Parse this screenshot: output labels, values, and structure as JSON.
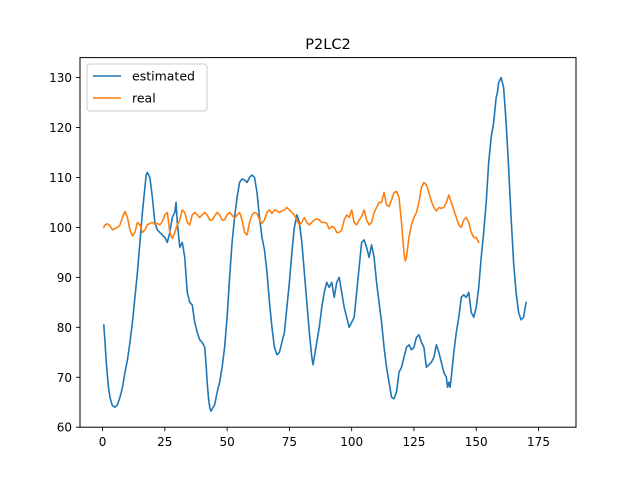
{
  "chart_data": {
    "type": "line",
    "title": "P2LC2",
    "xlabel": "",
    "ylabel": "",
    "xlim": [
      -9.05,
      190.05
    ],
    "ylim": [
      60,
      134
    ],
    "xticks": [
      0,
      25,
      50,
      75,
      100,
      125,
      150,
      175
    ],
    "yticks": [
      60,
      70,
      80,
      90,
      100,
      110,
      120,
      130
    ],
    "grid": false,
    "legend_position": "upper left",
    "series": [
      {
        "name": "estimated",
        "color": "#1f77b4",
        "points": [
          [
            0.5,
            80.5
          ],
          [
            1,
            77
          ],
          [
            1.5,
            73
          ],
          [
            2,
            70
          ],
          [
            2.5,
            67.5
          ],
          [
            3,
            66
          ],
          [
            3.5,
            65
          ],
          [
            4,
            64.3
          ],
          [
            5,
            64
          ],
          [
            6,
            64.5
          ],
          [
            7,
            66
          ],
          [
            8,
            68
          ],
          [
            9,
            71
          ],
          [
            10,
            73.5
          ],
          [
            11,
            77
          ],
          [
            12,
            81
          ],
          [
            13,
            86
          ],
          [
            14,
            91
          ],
          [
            15,
            97
          ],
          [
            16,
            103
          ],
          [
            17,
            108
          ],
          [
            17.5,
            110.5
          ],
          [
            18,
            111
          ],
          [
            19,
            110
          ],
          [
            20,
            106
          ],
          [
            21,
            101
          ],
          [
            22,
            99.5
          ],
          [
            23,
            99
          ],
          [
            24,
            98.5
          ],
          [
            25,
            98
          ],
          [
            26,
            97
          ],
          [
            27,
            99
          ],
          [
            28,
            102
          ],
          [
            29,
            103
          ],
          [
            29.5,
            105
          ],
          [
            30,
            101
          ],
          [
            31,
            96
          ],
          [
            32,
            97
          ],
          [
            33,
            94
          ],
          [
            34,
            87
          ],
          [
            35,
            85
          ],
          [
            36,
            84.5
          ],
          [
            37,
            81
          ],
          [
            38,
            79
          ],
          [
            39,
            77.5
          ],
          [
            40,
            77
          ],
          [
            41,
            76
          ],
          [
            41.5,
            73
          ],
          [
            42,
            69
          ],
          [
            42.5,
            66
          ],
          [
            43,
            64
          ],
          [
            43.5,
            63.2
          ],
          [
            45,
            64.5
          ],
          [
            46,
            67
          ],
          [
            47,
            69
          ],
          [
            48,
            72
          ],
          [
            49,
            76
          ],
          [
            50,
            82
          ],
          [
            51,
            90
          ],
          [
            52,
            97
          ],
          [
            53,
            102
          ],
          [
            54,
            106
          ],
          [
            55,
            109
          ],
          [
            56,
            109.7
          ],
          [
            57,
            109.5
          ],
          [
            58,
            109
          ],
          [
            59,
            110
          ],
          [
            60,
            110.5
          ],
          [
            61,
            110
          ],
          [
            62,
            107
          ],
          [
            63,
            102
          ],
          [
            64,
            98
          ],
          [
            65,
            95.5
          ],
          [
            66,
            91
          ],
          [
            67,
            85
          ],
          [
            68,
            80
          ],
          [
            69,
            76
          ],
          [
            70,
            74.5
          ],
          [
            71,
            75
          ],
          [
            72,
            77
          ],
          [
            73,
            79
          ],
          [
            74,
            84
          ],
          [
            75,
            89
          ],
          [
            76,
            95
          ],
          [
            77,
            100
          ],
          [
            78,
            102.5
          ],
          [
            79,
            101
          ],
          [
            80,
            97
          ],
          [
            81,
            91
          ],
          [
            82,
            85
          ],
          [
            83,
            79
          ],
          [
            84,
            74
          ],
          [
            84.5,
            72.5
          ],
          [
            85,
            74
          ],
          [
            86,
            77
          ],
          [
            87,
            80
          ],
          [
            88,
            84
          ],
          [
            89,
            87
          ],
          [
            90,
            89
          ],
          [
            91,
            88
          ],
          [
            92,
            89
          ],
          [
            93,
            86
          ],
          [
            94,
            89
          ],
          [
            95,
            90
          ],
          [
            96,
            87
          ],
          [
            97,
            84
          ],
          [
            98,
            82
          ],
          [
            99,
            80
          ],
          [
            100,
            81
          ],
          [
            101,
            82
          ],
          [
            102,
            87
          ],
          [
            103,
            92
          ],
          [
            104,
            97
          ],
          [
            105,
            97.5
          ],
          [
            106,
            96
          ],
          [
            107,
            94
          ],
          [
            108,
            96.5
          ],
          [
            109,
            94
          ],
          [
            110,
            89
          ],
          [
            111,
            85
          ],
          [
            112,
            81
          ],
          [
            113,
            76
          ],
          [
            114,
            72
          ],
          [
            115,
            69
          ],
          [
            116,
            66
          ],
          [
            117,
            65.7
          ],
          [
            118,
            67
          ],
          [
            119,
            71
          ],
          [
            120,
            72
          ],
          [
            121,
            74
          ],
          [
            122,
            76
          ],
          [
            123,
            76.5
          ],
          [
            124,
            75.5
          ],
          [
            125,
            76
          ],
          [
            126,
            78
          ],
          [
            127,
            78.5
          ],
          [
            128,
            77
          ],
          [
            129,
            76
          ],
          [
            130,
            72
          ],
          [
            131,
            72.5
          ],
          [
            132,
            73
          ],
          [
            133,
            74
          ],
          [
            134,
            76.5
          ],
          [
            135,
            75
          ],
          [
            136,
            73
          ],
          [
            137,
            71
          ],
          [
            138,
            70
          ],
          [
            138.5,
            68
          ],
          [
            139,
            69
          ],
          [
            139.5,
            68
          ],
          [
            140,
            70
          ],
          [
            141,
            75
          ],
          [
            142,
            79
          ],
          [
            143,
            82
          ],
          [
            144,
            86
          ],
          [
            145,
            86.5
          ],
          [
            146,
            86
          ],
          [
            147,
            87
          ],
          [
            148,
            83
          ],
          [
            149,
            82
          ],
          [
            150,
            84
          ],
          [
            151,
            88
          ],
          [
            152,
            94
          ],
          [
            153,
            99
          ],
          [
            154,
            105
          ],
          [
            155,
            113
          ],
          [
            156,
            118
          ],
          [
            157,
            121
          ],
          [
            158,
            126
          ],
          [
            158.5,
            127
          ],
          [
            159,
            129
          ],
          [
            160,
            130
          ],
          [
            161,
            128
          ],
          [
            162,
            121
          ],
          [
            163,
            112
          ],
          [
            164,
            102
          ],
          [
            165,
            93
          ],
          [
            166,
            87
          ],
          [
            167,
            83
          ],
          [
            168,
            81.5
          ],
          [
            169,
            82
          ],
          [
            170,
            85
          ]
        ]
      },
      {
        "name": "real",
        "color": "#ff7f0e",
        "points": [
          [
            0.5,
            100
          ],
          [
            1,
            100.5
          ],
          [
            2,
            100.7
          ],
          [
            3,
            100.3
          ],
          [
            4,
            99.5
          ],
          [
            5,
            99.8
          ],
          [
            6,
            100
          ],
          [
            7,
            100.5
          ],
          [
            8,
            102
          ],
          [
            9,
            103.2
          ],
          [
            10,
            102
          ],
          [
            11,
            99.5
          ],
          [
            12,
            98.3
          ],
          [
            13,
            99
          ],
          [
            14,
            101
          ],
          [
            15,
            100.5
          ],
          [
            16,
            99
          ],
          [
            17,
            99.5
          ],
          [
            18,
            100.5
          ],
          [
            19,
            100.8
          ],
          [
            20,
            101
          ],
          [
            21,
            100.6
          ],
          [
            22,
            100.8
          ],
          [
            23,
            100.5
          ],
          [
            24,
            101.2
          ],
          [
            25,
            102.5
          ],
          [
            26,
            103
          ],
          [
            27,
            99
          ],
          [
            28,
            97.8
          ],
          [
            29,
            99
          ],
          [
            30,
            100.5
          ],
          [
            31,
            101.5
          ],
          [
            32,
            103.5
          ],
          [
            33,
            103
          ],
          [
            34,
            101
          ],
          [
            35,
            100.5
          ],
          [
            36,
            102.5
          ],
          [
            37,
            103
          ],
          [
            38,
            102.5
          ],
          [
            39,
            102
          ],
          [
            40,
            102.5
          ],
          [
            41,
            103
          ],
          [
            42,
            102.5
          ],
          [
            43,
            101.5
          ],
          [
            44,
            101.5
          ],
          [
            45,
            102.3
          ],
          [
            46,
            103
          ],
          [
            47,
            102.5
          ],
          [
            48,
            101.5
          ],
          [
            49,
            101.5
          ],
          [
            50,
            102.5
          ],
          [
            51,
            103
          ],
          [
            52,
            102.5
          ],
          [
            53,
            101.8
          ],
          [
            54,
            102.5
          ],
          [
            55,
            103
          ],
          [
            56,
            101.5
          ],
          [
            57,
            99
          ],
          [
            58,
            98.5
          ],
          [
            59,
            101
          ],
          [
            60,
            102.5
          ],
          [
            61,
            103
          ],
          [
            62,
            102.8
          ],
          [
            63,
            101.5
          ],
          [
            64,
            100.8
          ],
          [
            65,
            101.5
          ],
          [
            66,
            103
          ],
          [
            67,
            103.5
          ],
          [
            68,
            102.8
          ],
          [
            69,
            103.5
          ],
          [
            70,
            103.3
          ],
          [
            71,
            103
          ],
          [
            72,
            103.3
          ],
          [
            73,
            103.5
          ],
          [
            74,
            104
          ],
          [
            75,
            103.5
          ],
          [
            76,
            103
          ],
          [
            77,
            102.5
          ],
          [
            78,
            101.5
          ],
          [
            79,
            100.5
          ],
          [
            80,
            101
          ],
          [
            81,
            102
          ],
          [
            82,
            101
          ],
          [
            83,
            100.5
          ],
          [
            84,
            101
          ],
          [
            85,
            101.5
          ],
          [
            86,
            101.7
          ],
          [
            87,
            101.5
          ],
          [
            88,
            101
          ],
          [
            89,
            101
          ],
          [
            90,
            100.8
          ],
          [
            91,
            99.7
          ],
          [
            92,
            100.2
          ],
          [
            93,
            100
          ],
          [
            94,
            99
          ],
          [
            95,
            99
          ],
          [
            96,
            99.5
          ],
          [
            97,
            101.5
          ],
          [
            98,
            102.5
          ],
          [
            99,
            102
          ],
          [
            100,
            103.5
          ],
          [
            101,
            101
          ],
          [
            102,
            100.5
          ],
          [
            103,
            101.5
          ],
          [
            104,
            102.2
          ],
          [
            105,
            103.5
          ],
          [
            106,
            101.5
          ],
          [
            107,
            100.5
          ],
          [
            108,
            101
          ],
          [
            109,
            103
          ],
          [
            110,
            104
          ],
          [
            111,
            105
          ],
          [
            112,
            105
          ],
          [
            113,
            107
          ],
          [
            114,
            104.5
          ],
          [
            115,
            104.2
          ],
          [
            116,
            105.5
          ],
          [
            117,
            107
          ],
          [
            118,
            107.2
          ],
          [
            119,
            106
          ],
          [
            120,
            101
          ],
          [
            121,
            95
          ],
          [
            121.5,
            93.3
          ],
          [
            122,
            94
          ],
          [
            123,
            98
          ],
          [
            124,
            100.5
          ],
          [
            125,
            102
          ],
          [
            126,
            103
          ],
          [
            127,
            105
          ],
          [
            128,
            108
          ],
          [
            129,
            109
          ],
          [
            130,
            108.5
          ],
          [
            131,
            107
          ],
          [
            132,
            105.2
          ],
          [
            133,
            104
          ],
          [
            134,
            103.3
          ],
          [
            135,
            104
          ],
          [
            136,
            103.8
          ],
          [
            137,
            104
          ],
          [
            138,
            105
          ],
          [
            139,
            106.5
          ],
          [
            140,
            105
          ],
          [
            141,
            103.5
          ],
          [
            142,
            102
          ],
          [
            143,
            100.5
          ],
          [
            144,
            100
          ],
          [
            145,
            101.5
          ],
          [
            146,
            102
          ],
          [
            147,
            101
          ],
          [
            148,
            99
          ],
          [
            149,
            98
          ],
          [
            150,
            98
          ],
          [
            151,
            97
          ]
        ]
      }
    ]
  }
}
